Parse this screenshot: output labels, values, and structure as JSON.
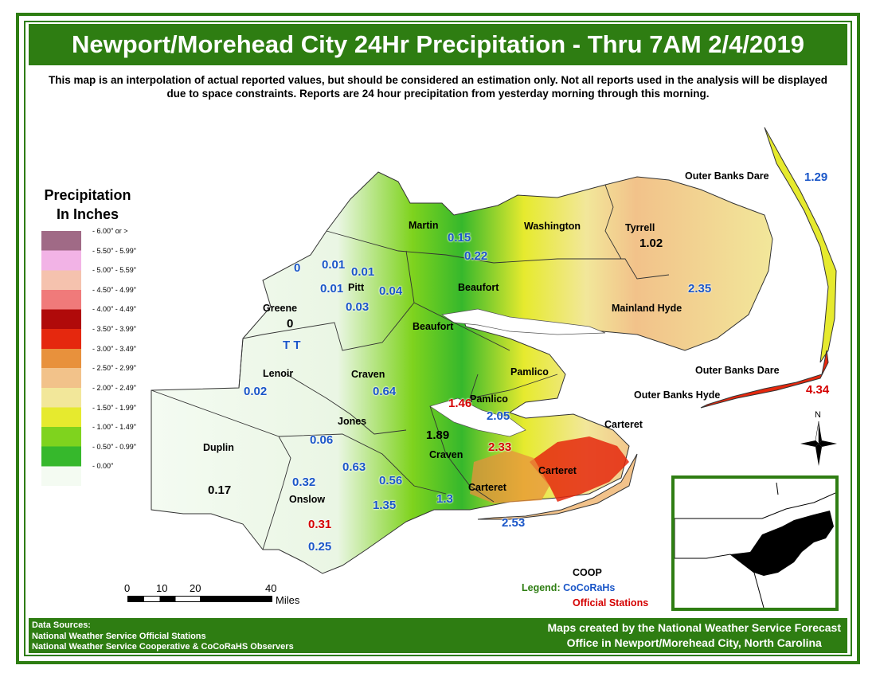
{
  "title": "Newport/Morehead City 24Hr Precipitation - Thru 7AM 2/4/2019",
  "disclaimer": "This map is an interpolation of actual reported values, but should be considered an estimation only. Not all reports used in the analysis will be displayed due to space constraints. Reports are 24 hour precipitation from yesterday morning through this morning.",
  "legend": {
    "title_line1": "Precipitation",
    "title_line2": "In Inches",
    "classes": [
      {
        "label": "6.00\" or >",
        "color": "#a06a86"
      },
      {
        "label": "5.50\" - 5.99\"",
        "color": "#f2b3e6"
      },
      {
        "label": "5.00\" - 5.59\"",
        "color": "#f5c2ae"
      },
      {
        "label": "4.50\" - 4.99\"",
        "color": "#f07a7a"
      },
      {
        "label": "4.00\" - 4.49\"",
        "color": "#b00a0a"
      },
      {
        "label": "3.50\" - 3.99\"",
        "color": "#e5280e"
      },
      {
        "label": "3.00\" - 3.49\"",
        "color": "#e8913c"
      },
      {
        "label": "2.50\" - 2.99\"",
        "color": "#f2c28a"
      },
      {
        "label": "2.00\" - 2.49\"",
        "color": "#f2e79a"
      },
      {
        "label": "1.50\" - 1.99\"",
        "color": "#e6ea2e"
      },
      {
        "label": "1.00\" - 1.49\"",
        "color": "#7fd31e"
      },
      {
        "label": "0.50\" - 0.99\"",
        "color": "#36b82c"
      },
      {
        "label": "0.00\"",
        "color": "#f4fbf2"
      }
    ]
  },
  "counties": [
    "Martin",
    "Washington",
    "Tyrrell",
    "Outer Banks Dare",
    "Pitt",
    "Beaufort",
    "Beaufort",
    "Mainland Hyde",
    "Greene",
    "Lenoir",
    "Craven",
    "Pamlico",
    "Pamlico",
    "Outer Banks Dare",
    "Outer Banks Hyde",
    "Jones",
    "Carteret",
    "Duplin",
    "Craven",
    "Carteret",
    "Carteret",
    "Onslow"
  ],
  "reports": [
    {
      "value": "1.29",
      "type": "cocorahs"
    },
    {
      "value": "0.15",
      "type": "cocorahs"
    },
    {
      "value": "1.02",
      "type": "coop"
    },
    {
      "value": "0.22",
      "type": "cocorahs"
    },
    {
      "value": "0",
      "type": "cocorahs"
    },
    {
      "value": "0.01",
      "type": "cocorahs"
    },
    {
      "value": "0.01",
      "type": "cocorahs"
    },
    {
      "value": "0.01",
      "type": "cocorahs"
    },
    {
      "value": "0.04",
      "type": "cocorahs"
    },
    {
      "value": "2.35",
      "type": "cocorahs"
    },
    {
      "value": "0.03",
      "type": "cocorahs"
    },
    {
      "value": "0",
      "type": "coop"
    },
    {
      "value": "T T",
      "type": "cocorahs"
    },
    {
      "value": "0.02",
      "type": "cocorahs"
    },
    {
      "value": "0.64",
      "type": "cocorahs"
    },
    {
      "value": "4.34",
      "type": "official"
    },
    {
      "value": "1.46",
      "type": "official"
    },
    {
      "value": "2.05",
      "type": "cocorahs"
    },
    {
      "value": "1.89",
      "type": "coop"
    },
    {
      "value": "0.06",
      "type": "cocorahs"
    },
    {
      "value": "2.33",
      "type": "official"
    },
    {
      "value": "0.63",
      "type": "cocorahs"
    },
    {
      "value": "0.32",
      "type": "cocorahs"
    },
    {
      "value": "0.56",
      "type": "cocorahs"
    },
    {
      "value": "0.17",
      "type": "coop"
    },
    {
      "value": "1.35",
      "type": "cocorahs"
    },
    {
      "value": "1.3",
      "type": "cocorahs"
    },
    {
      "value": "2.53",
      "type": "cocorahs"
    },
    {
      "value": "0.31",
      "type": "official"
    },
    {
      "value": "0.25",
      "type": "cocorahs"
    }
  ],
  "station_colors": {
    "coop": "#000000",
    "cocorahs": "#1a56c8",
    "official": "#d40000"
  },
  "station_legend": {
    "heading": "Legend:",
    "coop": "COOP",
    "cocorahs": "CoCoRaHs",
    "official": "Official Stations"
  },
  "scale": {
    "ticks": [
      "0",
      "10",
      "20",
      "40"
    ],
    "unit": "Miles"
  },
  "north": "N",
  "sources": {
    "heading": "Data Sources:",
    "line1": "National Weather Service Official Stations",
    "line2": "National Weather Service Cooperative & CoCoRaHS Observers"
  },
  "credit": {
    "line1": "Maps created by the National Weather Service Forecast",
    "line2": "Office in Newport/Morehead City, North Carolina"
  }
}
